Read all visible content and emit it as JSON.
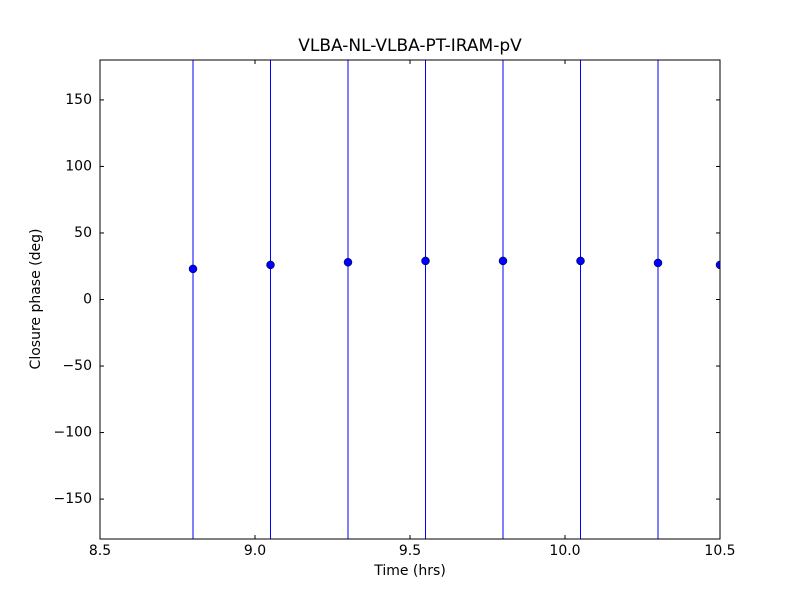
{
  "chart_data": {
    "type": "errorbar",
    "title": "VLBA-NL-VLBA-PT-IRAM-pV",
    "xlabel": "Time (hrs)",
    "ylabel": "Closure phase (deg)",
    "series": [
      {
        "color": "#0000ff",
        "x": [
          8.8,
          9.05,
          9.3,
          9.55,
          9.8,
          10.05,
          10.3,
          10.5
        ],
        "values": [
          23,
          26,
          28,
          29,
          29,
          29,
          27.5,
          26
        ],
        "errors": [
          250,
          250,
          250,
          250,
          250,
          250,
          250,
          250
        ]
      }
    ],
    "xlim": [
      8.5,
      10.5
    ],
    "xticks": [
      8.5,
      {
        "value": 9,
        "label": "9.0"
      },
      9.5,
      {
        "value": 10,
        "label": "10.0"
      },
      10.5
    ],
    "ylim": [
      -180,
      180
    ],
    "yticks": [
      {
        "value": -150,
        "label": "−150"
      },
      {
        "value": -100,
        "label": "−100"
      },
      {
        "value": -50,
        "label": "−50"
      },
      0,
      50,
      100,
      150
    ]
  }
}
